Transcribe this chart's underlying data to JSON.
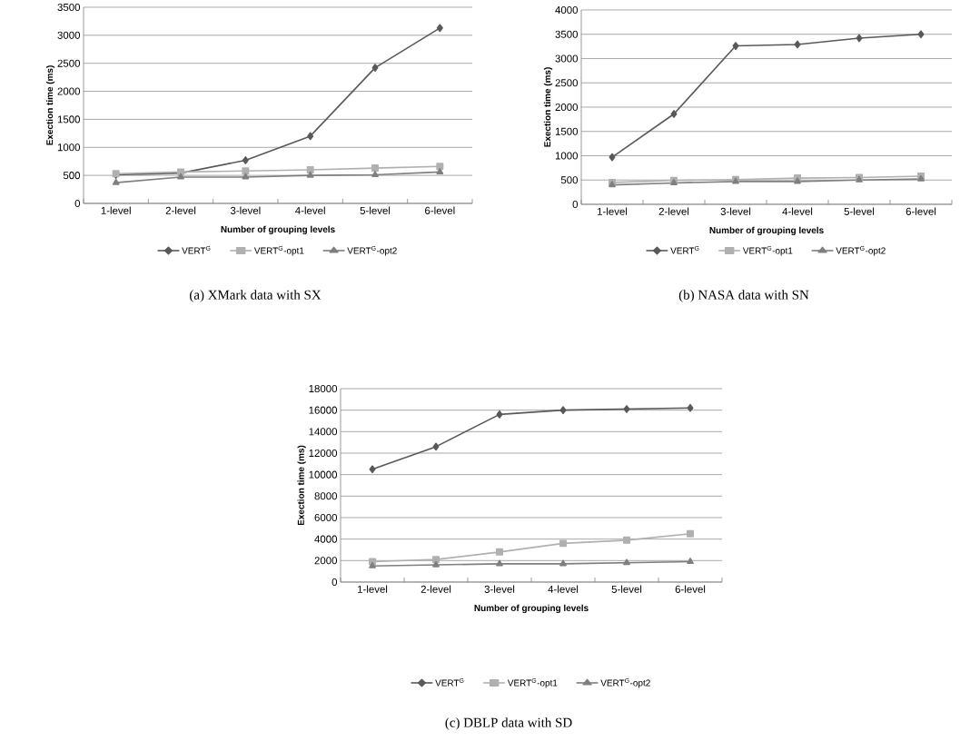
{
  "chart_data": [
    {
      "type": "line",
      "categories": [
        "1-level",
        "2-level",
        "3-level",
        "4-level",
        "5-level",
        "6-level"
      ],
      "xlabel": "Number of grouping levels",
      "ylabel": "Exection time (ms)",
      "ylim": [
        0,
        3500
      ],
      "yticks": [
        0,
        500,
        1000,
        1500,
        2000,
        2500,
        3000,
        3500
      ],
      "grid": "y",
      "legend": "bottom",
      "annotations": [
        "(a) XMark data with SX"
      ],
      "series": [
        {
          "name": "VERT$^{G}$",
          "color": "#595959",
          "marker": "diamond",
          "values": [
            510,
            540,
            770,
            1200,
            2420,
            3130
          ]
        },
        {
          "name": "VERT$^{G}$-opt1",
          "color": "#b0b0b0",
          "marker": "square",
          "values": [
            530,
            560,
            580,
            600,
            630,
            660
          ]
        },
        {
          "name": "VERT$^{G}$-opt2",
          "color": "#7f7f7f",
          "marker": "triangle",
          "values": [
            370,
            470,
            470,
            500,
            510,
            560
          ]
        }
      ]
    },
    {
      "type": "line",
      "categories": [
        "1-level",
        "2-level",
        "3-level",
        "4-level",
        "5-level",
        "6-level"
      ],
      "xlabel": "Number of grouping levels",
      "ylabel": "Exection time (ms)",
      "ylim": [
        0,
        4000
      ],
      "yticks": [
        0,
        500,
        1000,
        1500,
        2000,
        2500,
        3000,
        3500,
        4000
      ],
      "grid": "y",
      "legend": "bottom",
      "annotations": [
        "(b) NASA data with SN"
      ],
      "series": [
        {
          "name": "VERT$^{G}$",
          "color": "#595959",
          "marker": "diamond",
          "values": [
            970,
            1860,
            3260,
            3290,
            3420,
            3500
          ]
        },
        {
          "name": "VERT$^{G}$-opt1",
          "color": "#b0b0b0",
          "marker": "square",
          "values": [
            450,
            490,
            510,
            540,
            550,
            580
          ]
        },
        {
          "name": "VERT$^{G}$-opt2",
          "color": "#7f7f7f",
          "marker": "triangle",
          "values": [
            400,
            440,
            470,
            470,
            500,
            520
          ]
        }
      ]
    },
    {
      "type": "line",
      "categories": [
        "1-level",
        "2-level",
        "3-level",
        "4-level",
        "5-level",
        "6-level"
      ],
      "xlabel": "Number of grouping levels",
      "ylabel": "Exection time (ms)",
      "ylim": [
        0,
        18000
      ],
      "yticks": [
        0,
        2000,
        4000,
        6000,
        8000,
        10000,
        12000,
        14000,
        16000,
        18000
      ],
      "grid": "y",
      "legend": "bottom",
      "annotations": [
        "(c) DBLP data with SD"
      ],
      "series": [
        {
          "name": "VERT$^{G}$",
          "color": "#595959",
          "marker": "diamond",
          "values": [
            10500,
            12600,
            15600,
            16000,
            16100,
            16200
          ]
        },
        {
          "name": "VERT$^{G}$-opt1",
          "color": "#b0b0b0",
          "marker": "square",
          "values": [
            1900,
            2100,
            2800,
            3600,
            3900,
            4500
          ]
        },
        {
          "name": "VERT$^{G}$-opt2",
          "color": "#7f7f7f",
          "marker": "triangle",
          "values": [
            1500,
            1600,
            1700,
            1700,
            1800,
            1900
          ]
        }
      ]
    }
  ]
}
